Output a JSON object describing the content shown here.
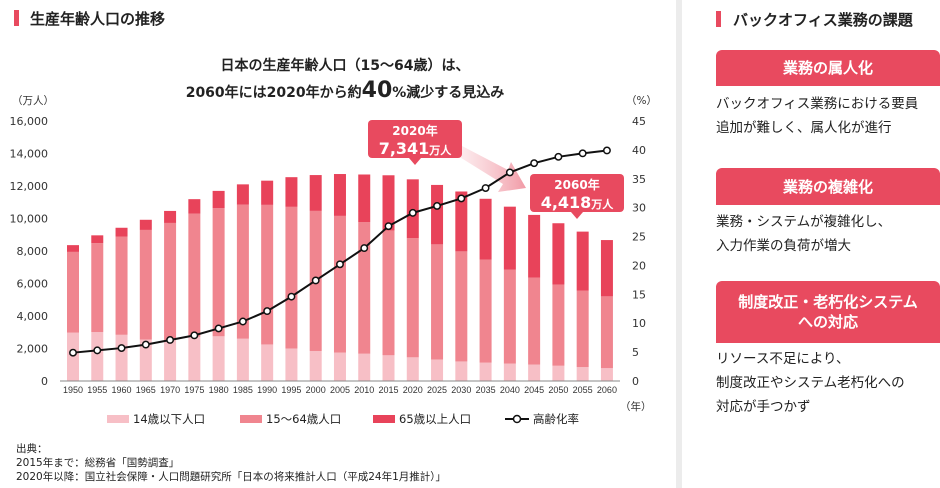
{
  "left_panel": {
    "title": "生産年齢人口の推移",
    "subtitle_line1": "日本の生産年齢人口（15～64歳）は、",
    "subtitle_line2_pre": "2060年には2020年から約",
    "subtitle_line2_big": "40",
    "subtitle_line2_post": "%減少する見込み",
    "callout_2020_year": "2020年",
    "callout_2020_value": "7,341",
    "callout_2020_unit": "万人",
    "callout_2060_year": "2060年",
    "callout_2060_value": "4,418",
    "callout_2060_unit": "万人",
    "source_label": "出典：",
    "source_1": "2015年まで：総務省「国勢調査」",
    "source_2": "2020年以降：国立社会保障・人口問題研究所「日本の将来推計人口（平成24年1月推計）」"
  },
  "chart_data": {
    "type": "bar",
    "stacked": true,
    "title": "生産年齢人口の推移",
    "xlabel": "（年）",
    "ylabel": "（万人）",
    "y2label": "（%）",
    "ylim": [
      0,
      16000
    ],
    "y2lim": [
      0,
      45
    ],
    "yticks": [
      "0",
      "2,000",
      "4,000",
      "6,000",
      "8,000",
      "10,000",
      "12,000",
      "14,000",
      "16,000"
    ],
    "y2ticks": [
      "0",
      "5",
      "10",
      "15",
      "20",
      "25",
      "30",
      "35",
      "40",
      "45"
    ],
    "categories": [
      "1950",
      "1955",
      "1960",
      "1965",
      "1970",
      "1975",
      "1980",
      "1985",
      "1990",
      "1995",
      "2000",
      "2005",
      "2010",
      "2015",
      "2020",
      "2025",
      "2030",
      "2035",
      "2040",
      "2045",
      "2050",
      "2055",
      "2060"
    ],
    "series": [
      {
        "name": "14歳以下人口",
        "color": "#f7bfc6",
        "values": [
          2979,
          3012,
          2843,
          2553,
          2515,
          2722,
          2751,
          2603,
          2249,
          2001,
          1847,
          1752,
          1680,
          1583,
          1457,
          1324,
          1204,
          1129,
          1073,
          1012,
          939,
          861,
          791
        ]
      },
      {
        "name": "15～64歳人口",
        "color": "#f0858f",
        "values": [
          4966,
          5473,
          6047,
          6744,
          7212,
          7581,
          7883,
          8251,
          8590,
          8716,
          8622,
          8409,
          8103,
          7682,
          7341,
          7085,
          6773,
          6343,
          5787,
          5353,
          5001,
          4706,
          4418
        ]
      },
      {
        "name": "65歳以上人口",
        "color": "#e8435a",
        "values": [
          416,
          479,
          540,
          624,
          739,
          887,
          1065,
          1247,
          1489,
          1826,
          2204,
          2576,
          2925,
          3395,
          3612,
          3657,
          3685,
          3741,
          3868,
          3856,
          3768,
          3626,
          3464
        ]
      },
      {
        "name": "高齢化率",
        "type": "line",
        "axis": "right",
        "color": "#111111",
        "values": [
          4.9,
          5.3,
          5.7,
          6.3,
          7.1,
          7.9,
          9.1,
          10.3,
          12.1,
          14.6,
          17.4,
          20.2,
          23.0,
          26.8,
          29.1,
          30.3,
          31.6,
          33.4,
          36.1,
          37.7,
          38.8,
          39.4,
          39.9
        ]
      }
    ],
    "legend": "bottom",
    "grid": false
  },
  "right_panel": {
    "title": "バックオフィス業務の課題",
    "items": [
      {
        "heading": "業務の属人化",
        "lines": [
          "バックオフィス業務における要員",
          "追加が難しく、属人化が進行"
        ]
      },
      {
        "heading": "業務の複雑化",
        "lines": [
          "業務・システムが複雑化し、",
          "入力作業の負荷が増大"
        ]
      },
      {
        "heading_lines": [
          "制度改正・老朽化システム",
          "への対応"
        ],
        "lines": [
          "リソース不足により、",
          "制度改正やシステム老朽化への",
          "対応が手つかず"
        ]
      }
    ]
  }
}
